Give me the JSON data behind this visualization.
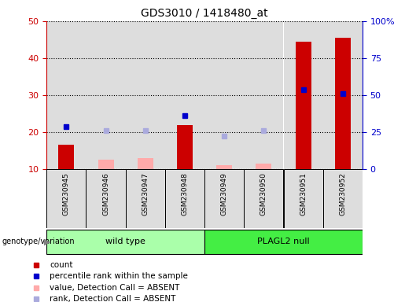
{
  "title": "GDS3010 / 1418480_at",
  "samples": [
    "GSM230945",
    "GSM230946",
    "GSM230947",
    "GSM230948",
    "GSM230949",
    "GSM230950",
    "GSM230951",
    "GSM230952"
  ],
  "count_values": [
    16.5,
    null,
    null,
    22.0,
    null,
    null,
    44.5,
    45.5
  ],
  "count_absent_values": [
    null,
    12.5,
    13.0,
    null,
    11.0,
    11.5,
    null,
    null
  ],
  "rank_values": [
    21.5,
    null,
    null,
    24.5,
    null,
    null,
    31.5,
    30.5
  ],
  "rank_absent_values": [
    null,
    20.5,
    20.5,
    null,
    19.0,
    20.5,
    null,
    null
  ],
  "ylim_left": [
    10,
    50
  ],
  "ylim_right": [
    0,
    100
  ],
  "yticks_left": [
    10,
    20,
    30,
    40,
    50
  ],
  "yticks_right": [
    0,
    25,
    50,
    75,
    100
  ],
  "ytick_labels_right": [
    "0",
    "25",
    "50",
    "75",
    "100%"
  ],
  "bar_width": 0.4,
  "count_color": "#cc0000",
  "count_absent_color": "#ffaaaa",
  "rank_color": "#0000cc",
  "rank_absent_color": "#aaaadd",
  "wt_color": "#aaffaa",
  "pn_color": "#44ee44",
  "bg_plot_color": "#dddddd",
  "legend_items": [
    {
      "label": "count",
      "color": "#cc0000"
    },
    {
      "label": "percentile rank within the sample",
      "color": "#0000cc"
    },
    {
      "label": "value, Detection Call = ABSENT",
      "color": "#ffaaaa"
    },
    {
      "label": "rank, Detection Call = ABSENT",
      "color": "#aaaadd"
    }
  ],
  "left_tick_color": "#cc0000",
  "right_tick_color": "#0000cc"
}
